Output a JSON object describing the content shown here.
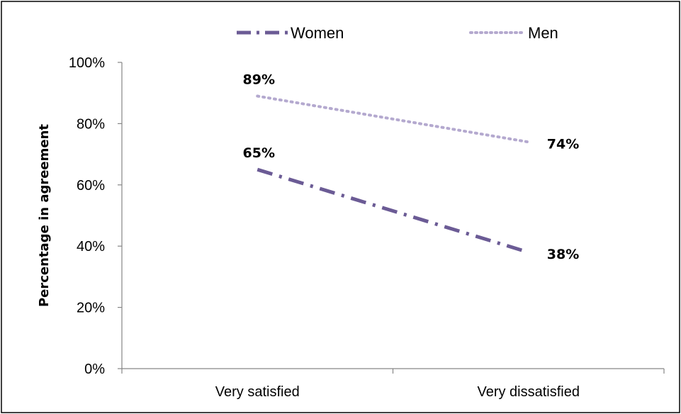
{
  "chart_data": {
    "type": "line",
    "categories": [
      "Very satisfied",
      "Very dissatisfied"
    ],
    "series": [
      {
        "name": "Women",
        "values": [
          65,
          38
        ],
        "labels": [
          "65%",
          "38%"
        ],
        "color": "#6b5b95",
        "line_style": "dash-dot"
      },
      {
        "name": "Men",
        "values": [
          89,
          74
        ],
        "labels": [
          "89%",
          "74%"
        ],
        "color": "#b4a9cf",
        "line_style": "dotted"
      }
    ],
    "ylabel": "Percentage in agreement",
    "xlabel": "",
    "ylim": [
      0,
      100
    ],
    "yticks": [
      "0%",
      "20%",
      "40%",
      "60%",
      "80%",
      "100%"
    ],
    "legend_position": "top",
    "grid": false
  }
}
